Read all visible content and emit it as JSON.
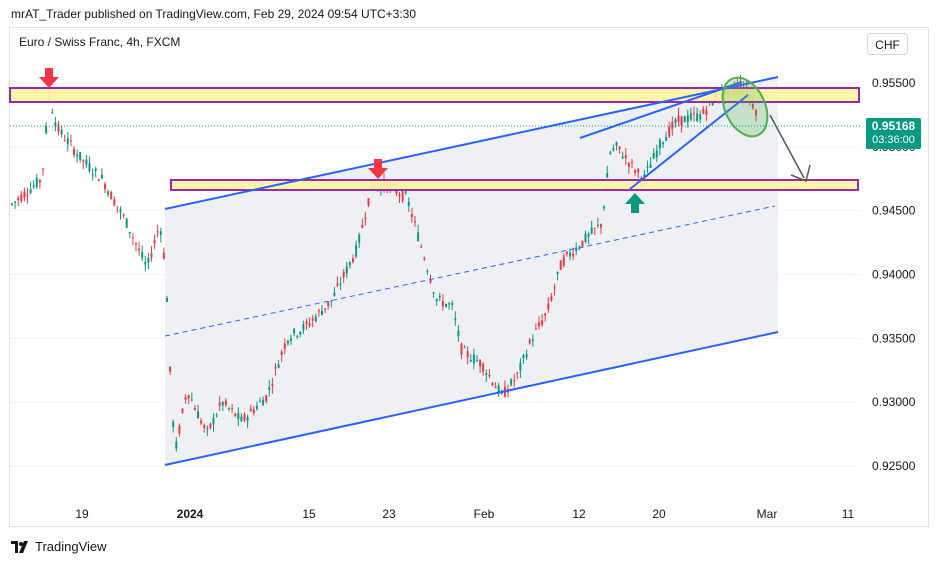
{
  "header": {
    "publisher_line": "mrAT_Trader published on TradingView.com, Feb 29, 2024 09:54 UTC+3:30"
  },
  "chart": {
    "symbol": "Euro / Swiss Franc, 4h, FXCM",
    "currency_button": "CHF"
  },
  "price_tag": {
    "price": "0.95168",
    "countdown": "03:36:00",
    "color": "#089981"
  },
  "footer": {
    "brand": "TradingView"
  },
  "colors": {
    "up": "#089981",
    "down": "#f23645",
    "channel": "#2962ff",
    "zone_fill": "#fff59d",
    "zone_border": "#9c27b0",
    "arrow_down": "#f23645",
    "arrow_up": "#089981",
    "ellipse": "#4caf50"
  },
  "chart_data": {
    "type": "candlestick",
    "y_ticks": [
      "0.95500",
      "0.95000",
      "0.94500",
      "0.94000",
      "0.93500",
      "0.93000",
      "0.92500"
    ],
    "x_ticks": [
      "19",
      "2024",
      "15",
      "23",
      "Feb",
      "12",
      "20",
      "Mar",
      "11"
    ],
    "ylim": [
      0.9225,
      0.9582
    ],
    "price_path": [
      [
        0,
        0.9455
      ],
      [
        30,
        0.9475
      ],
      [
        37,
        0.954
      ],
      [
        45,
        0.9515
      ],
      [
        70,
        0.949
      ],
      [
        90,
        0.9475
      ],
      [
        115,
        0.944
      ],
      [
        135,
        0.9405
      ],
      [
        148,
        0.944
      ],
      [
        152,
        0.9415
      ],
      [
        156,
        0.937
      ],
      [
        158,
        0.9325
      ],
      [
        163,
        0.926
      ],
      [
        175,
        0.931
      ],
      [
        195,
        0.9275
      ],
      [
        210,
        0.93
      ],
      [
        230,
        0.9285
      ],
      [
        255,
        0.9305
      ],
      [
        275,
        0.935
      ],
      [
        295,
        0.936
      ],
      [
        320,
        0.938
      ],
      [
        345,
        0.942
      ],
      [
        360,
        0.947
      ],
      [
        375,
        0.947
      ],
      [
        395,
        0.946
      ],
      [
        410,
        0.942
      ],
      [
        425,
        0.938
      ],
      [
        440,
        0.9375
      ],
      [
        450,
        0.934
      ],
      [
        470,
        0.933
      ],
      [
        490,
        0.9305
      ],
      [
        505,
        0.932
      ],
      [
        520,
        0.935
      ],
      [
        535,
        0.937
      ],
      [
        550,
        0.941
      ],
      [
        570,
        0.9425
      ],
      [
        590,
        0.944
      ],
      [
        598,
        0.9495
      ],
      [
        605,
        0.95
      ],
      [
        625,
        0.948
      ],
      [
        632,
        0.9475
      ],
      [
        650,
        0.9505
      ],
      [
        665,
        0.952
      ],
      [
        690,
        0.9525
      ],
      [
        705,
        0.954
      ],
      [
        720,
        0.9545
      ],
      [
        730,
        0.955
      ],
      [
        740,
        0.9535
      ],
      [
        750,
        0.952
      ],
      [
        758,
        0.9517
      ]
    ],
    "resistance_zone": [
      0.9539,
      0.955
    ],
    "support_zone": [
      0.9472,
      0.9478
    ],
    "current_price": 0.95168,
    "annotations": [
      "down arrow at Dec high",
      "down arrow at Jan 23 high",
      "up arrow at Feb 16 low",
      "ascending channel",
      "rising wedge",
      "projected down move"
    ]
  }
}
